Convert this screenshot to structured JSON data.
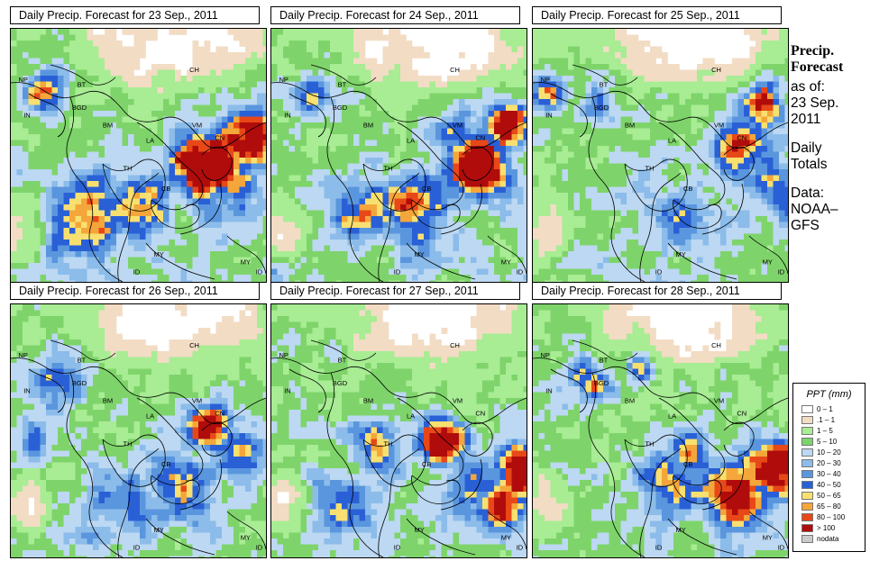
{
  "panels": [
    {
      "title": "Daily Precip. Forecast for  23 Sep., 2011",
      "day": "23 Sep."
    },
    {
      "title": "Daily Precip. Forecast for  24 Sep., 2011",
      "day": "24 Sep."
    },
    {
      "title": "Daily Precip. Forecast for  25 Sep., 2011",
      "day": "25 Sep."
    },
    {
      "title": "Daily Precip. Forecast for  26 Sep., 2011",
      "day": "26 Sep."
    },
    {
      "title": "Daily Precip. Forecast for  27 Sep., 2011",
      "day": "27 Sep."
    },
    {
      "title": "Daily Precip. Forecast for  28 Sep., 2011",
      "day": "28 Sep."
    }
  ],
  "country_labels": {
    "ch": "CH",
    "np": "NP",
    "bt": "BT",
    "in": "IN",
    "bd": "BGD",
    "bm": "BM",
    "vm": "VM",
    "la": "LA",
    "th": "TH",
    "cb": "CB",
    "my": "MY",
    "id": "ID",
    "cn": "CN"
  },
  "sidebar": {
    "title_line1": "Precip.",
    "title_line2": "Forecast",
    "as_of_line1": "as of:",
    "as_of_line2": "23 Sep.",
    "as_of_line3": "2011",
    "totals_line1": "Daily",
    "totals_line2": "Totals",
    "data_line1": "Data:",
    "data_line2": "NOAA–",
    "data_line3": "GFS"
  },
  "legend": {
    "title": "PPT (mm)",
    "items": [
      {
        "label": "0 – 1",
        "color": "#ffffff"
      },
      {
        "label": ".1 – 1",
        "color": "#f2dcc4"
      },
      {
        "label": "1 – 5",
        "color": "#a8ec94"
      },
      {
        "label": "5 – 10",
        "color": "#7ed46a"
      },
      {
        "label": "10 – 20",
        "color": "#bcd8f2"
      },
      {
        "label": "20 – 30",
        "color": "#8cbcea"
      },
      {
        "label": "30 – 40",
        "color": "#5a96de"
      },
      {
        "label": "40 – 50",
        "color": "#2a60d6"
      },
      {
        "label": "50 – 65",
        "color": "#f8e070"
      },
      {
        "label": "65 – 80",
        "color": "#f4a63a"
      },
      {
        "label": "80 – 100",
        "color": "#e84818"
      },
      {
        "label": "> 100",
        "color": "#b00c0c"
      },
      {
        "label": "nodata",
        "color": "#cccccc"
      }
    ]
  }
}
